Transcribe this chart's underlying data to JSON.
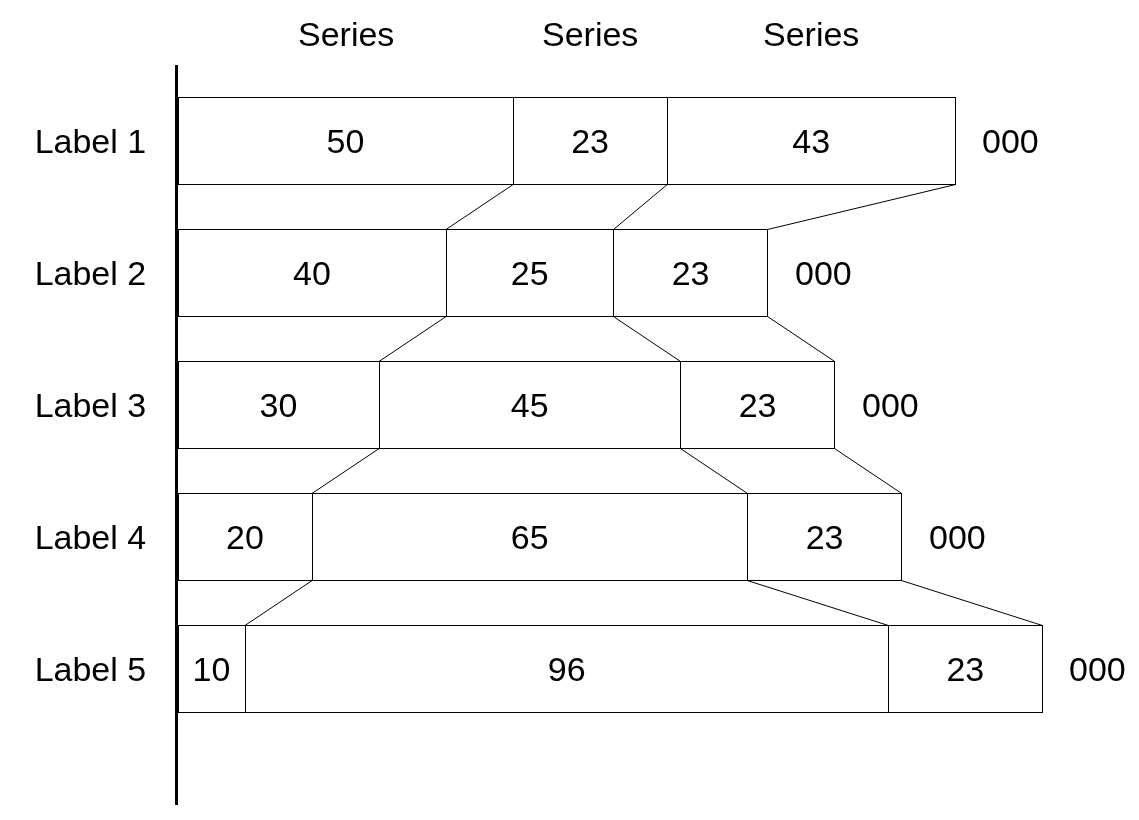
{
  "chart_data": {
    "type": "bar",
    "orientation": "horizontal",
    "stacked": true,
    "data_labels": true,
    "legend": false,
    "categories": [
      "Label 1",
      "Label 2",
      "Label 3",
      "Label 4",
      "Label 5"
    ],
    "series": [
      {
        "name": "Series",
        "color": "#ffffff",
        "values": [
          50,
          40,
          30,
          20,
          10
        ]
      },
      {
        "name": "Series",
        "color": "#ffffff",
        "values": [
          23,
          25,
          45,
          65,
          96
        ]
      },
      {
        "name": "Series",
        "color": "#ffffff",
        "values": [
          43,
          23,
          23,
          23,
          23
        ]
      }
    ],
    "annotations": [
      "000",
      "000",
      "000",
      "000",
      "000"
    ]
  }
}
